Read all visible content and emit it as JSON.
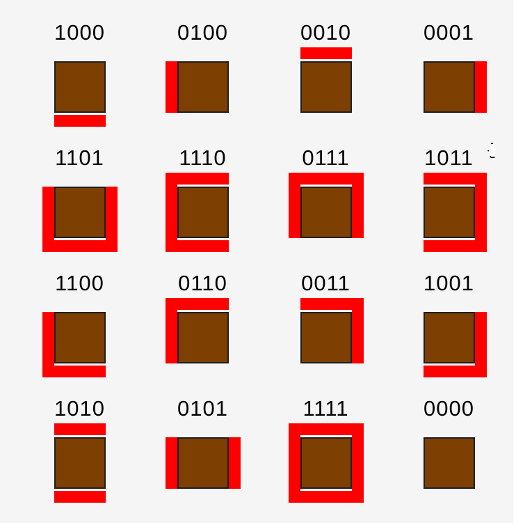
{
  "colors": {
    "background": "#f5f5f5",
    "square_fill": "#7d3f02",
    "square_border": "#1f1f1f",
    "edge_bar_red": "#ff0000",
    "label_text": "#000000"
  },
  "bit_order": [
    "bottom",
    "left",
    "top",
    "right"
  ],
  "cells": [
    {
      "code": "1000",
      "sides": [
        "bottom"
      ]
    },
    {
      "code": "0100",
      "sides": [
        "left"
      ]
    },
    {
      "code": "0010",
      "sides": [
        "top"
      ]
    },
    {
      "code": "0001",
      "sides": [
        "right"
      ]
    },
    {
      "code": "1101",
      "sides": [
        "bottom",
        "left",
        "right"
      ]
    },
    {
      "code": "1110",
      "sides": [
        "bottom",
        "left",
        "top"
      ]
    },
    {
      "code": "0111",
      "sides": [
        "left",
        "top",
        "right"
      ]
    },
    {
      "code": "1011",
      "sides": [
        "bottom",
        "top",
        "right"
      ]
    },
    {
      "code": "1100",
      "sides": [
        "bottom",
        "left"
      ]
    },
    {
      "code": "0110",
      "sides": [
        "left",
        "top"
      ]
    },
    {
      "code": "0011",
      "sides": [
        "top",
        "right"
      ]
    },
    {
      "code": "1001",
      "sides": [
        "bottom",
        "right"
      ]
    },
    {
      "code": "1010",
      "sides": [
        "bottom",
        "top"
      ]
    },
    {
      "code": "0101",
      "sides": [
        "left",
        "right"
      ]
    },
    {
      "code": "1111",
      "sides": [
        "bottom",
        "left",
        "top",
        "right"
      ]
    },
    {
      "code": "0000",
      "sides": []
    }
  ],
  "artifacts": {
    "cursor": "hand-cursor"
  }
}
